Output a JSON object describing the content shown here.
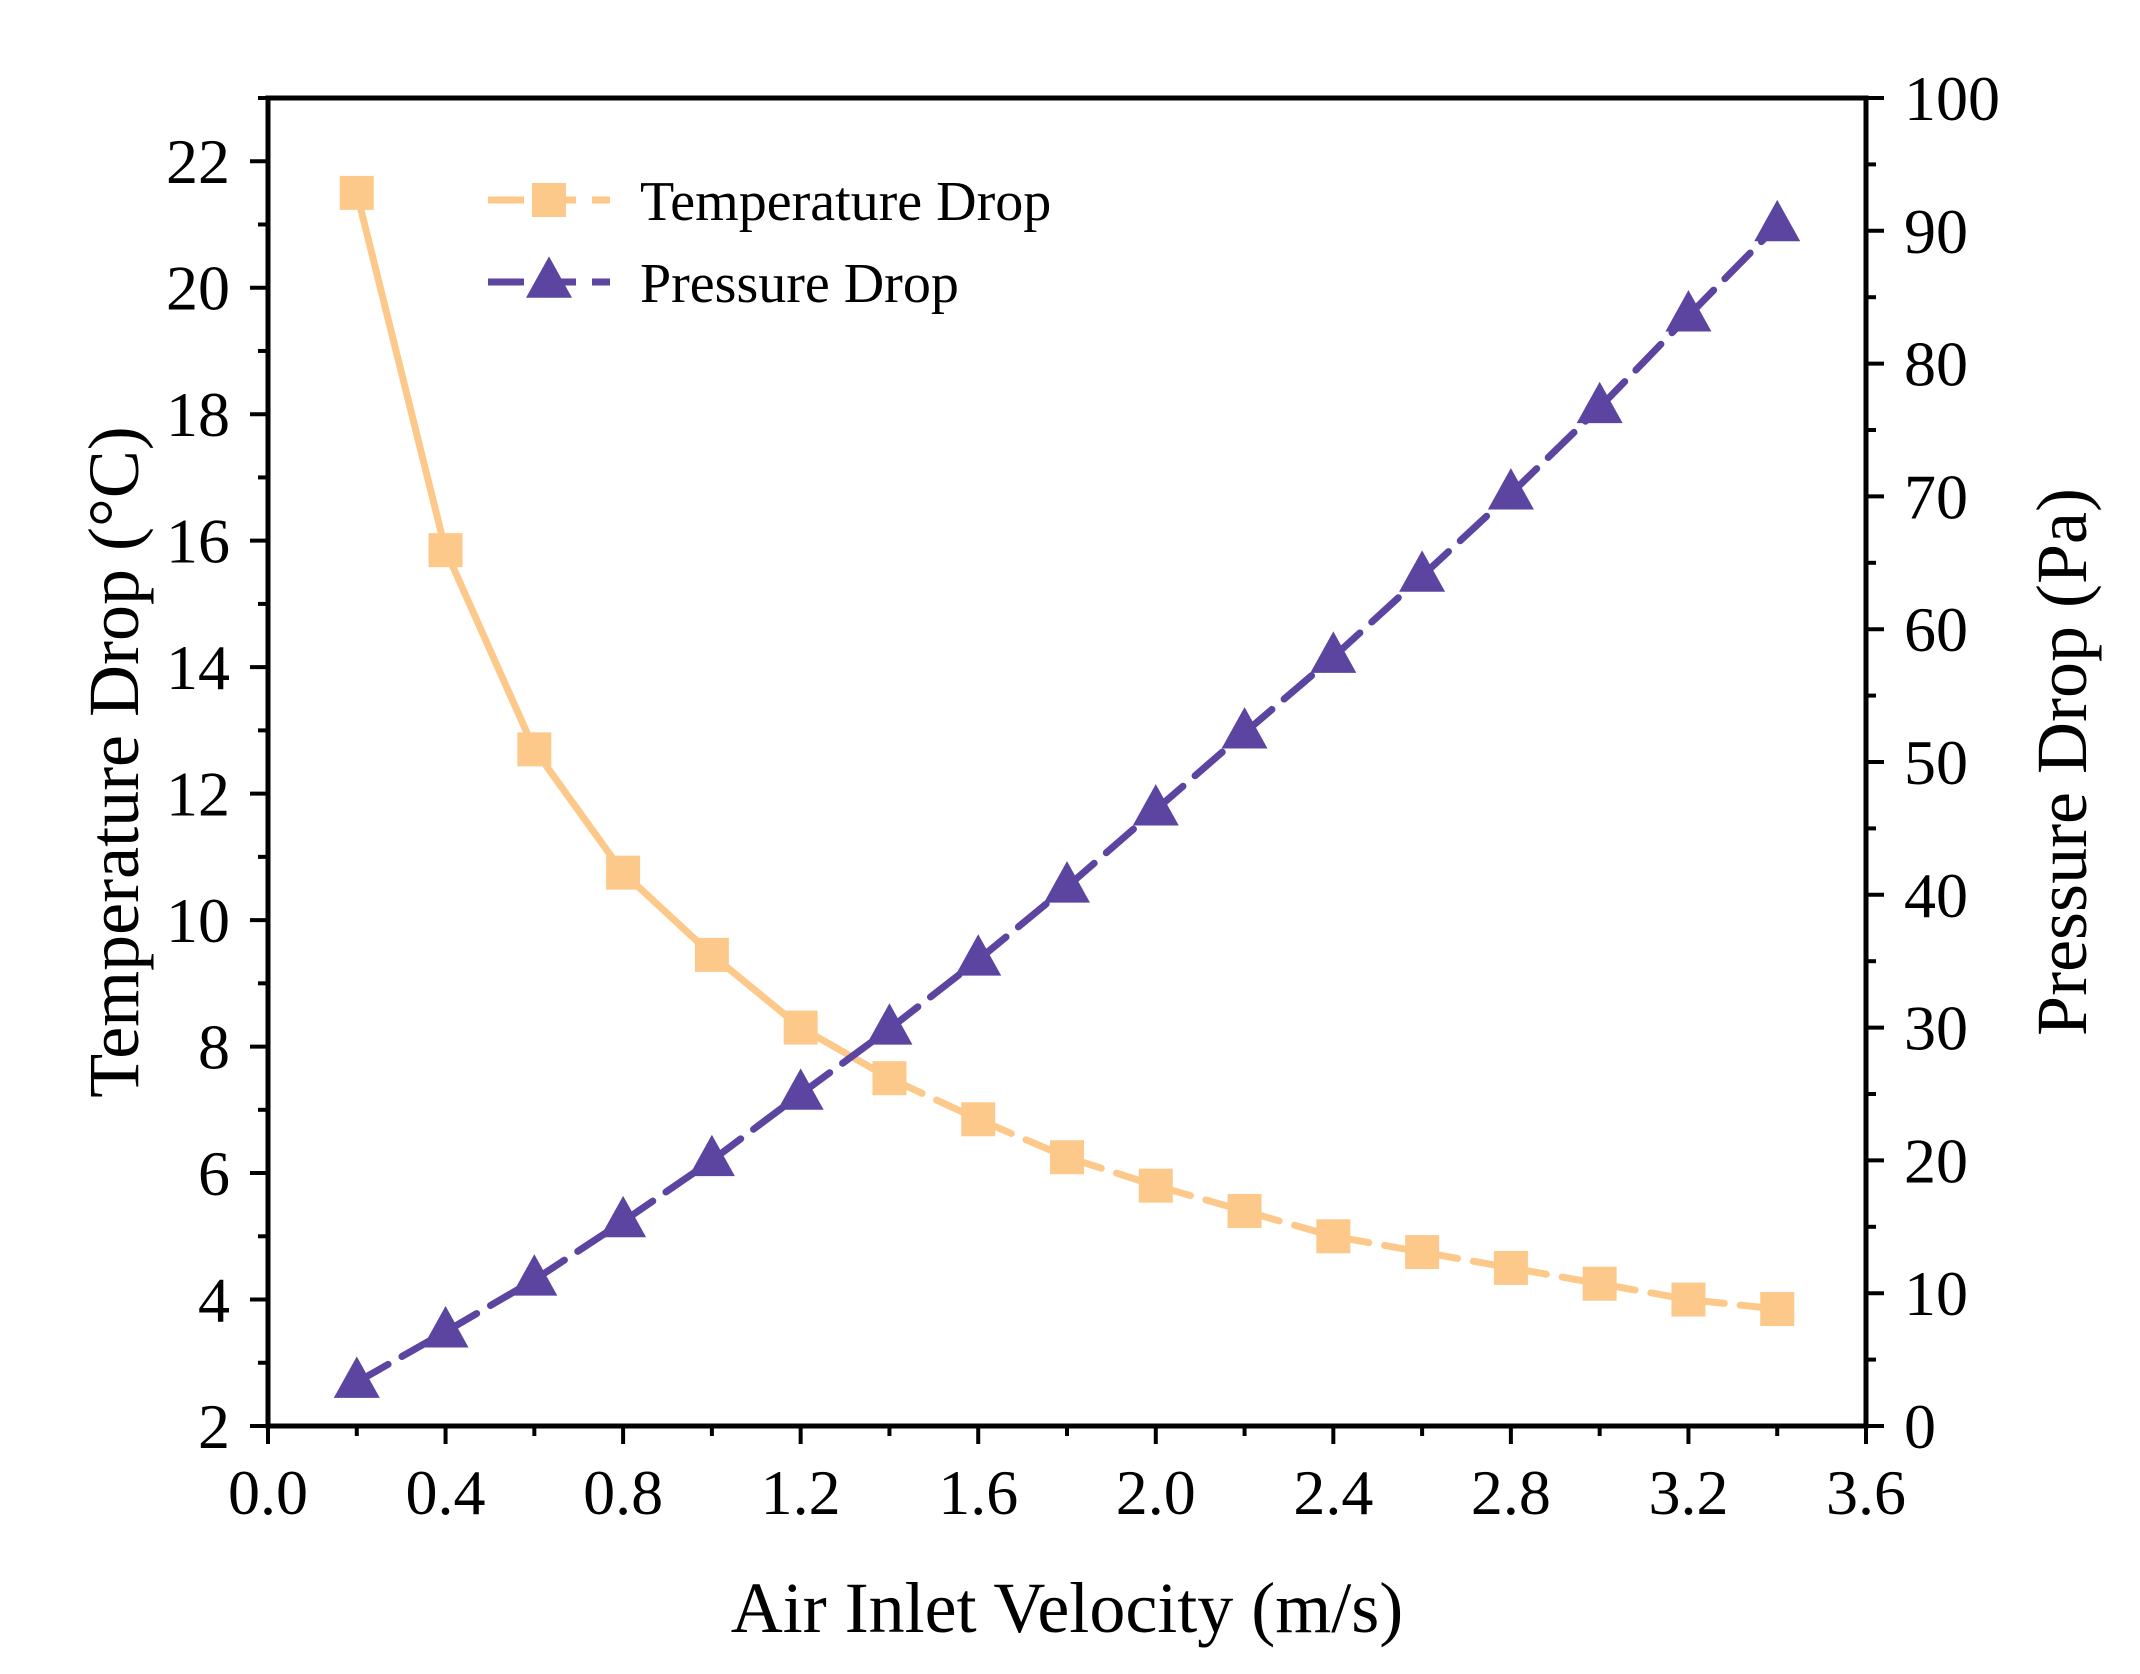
{
  "chart_data": {
    "type": "line",
    "title": "",
    "xlabel": "Air Inlet Velocity (m/s)",
    "ylabel_left": "Temperature Drop (°C)",
    "ylabel_right": "Pressure Drop (Pa)",
    "xlim": [
      0.0,
      3.6
    ],
    "ylim_left": [
      2,
      23
    ],
    "ylim_right": [
      0,
      100
    ],
    "xticks": [
      0.0,
      0.4,
      0.8,
      1.2,
      1.6,
      2.0,
      2.4,
      2.8,
      3.2,
      3.6
    ],
    "xtick_labels": [
      "0.0",
      "0.4",
      "0.8",
      "1.2",
      "1.6",
      "2.0",
      "2.4",
      "2.8",
      "3.2",
      "3.6"
    ],
    "yticks_left": [
      2,
      4,
      6,
      8,
      10,
      12,
      14,
      16,
      18,
      20,
      22
    ],
    "ytick_labels_left": [
      "2",
      "4",
      "6",
      "8",
      "10",
      "12",
      "14",
      "16",
      "18",
      "20",
      "22"
    ],
    "yticks_right": [
      0,
      10,
      20,
      30,
      40,
      50,
      60,
      70,
      80,
      90,
      100
    ],
    "ytick_labels_right": [
      "0",
      "10",
      "20",
      "30",
      "40",
      "50",
      "60",
      "70",
      "80",
      "90",
      "100"
    ],
    "grid": false,
    "legend_position": "top-left",
    "x": [
      0.2,
      0.4,
      0.6,
      0.8,
      1.0,
      1.2,
      1.4,
      1.6,
      1.8,
      2.0,
      2.2,
      2.4,
      2.6,
      2.8,
      3.0,
      3.2,
      3.4
    ],
    "series": [
      {
        "name": "Temperature Drop",
        "axis": "left",
        "marker": "square",
        "color": "#FDC98A",
        "values": [
          21.5,
          15.85,
          12.7,
          10.75,
          9.45,
          8.3,
          7.5,
          6.85,
          6.25,
          5.8,
          5.4,
          5.0,
          4.75,
          4.5,
          4.25,
          4.0,
          3.85
        ]
      },
      {
        "name": "Pressure Drop",
        "axis": "right",
        "marker": "triangle",
        "color": "#5B45A0",
        "values": [
          3.3,
          7.1,
          11.0,
          15.4,
          20.0,
          25.0,
          29.9,
          35.1,
          40.6,
          46.4,
          52.2,
          57.9,
          64.0,
          70.2,
          76.7,
          83.6,
          90.4
        ]
      }
    ]
  }
}
